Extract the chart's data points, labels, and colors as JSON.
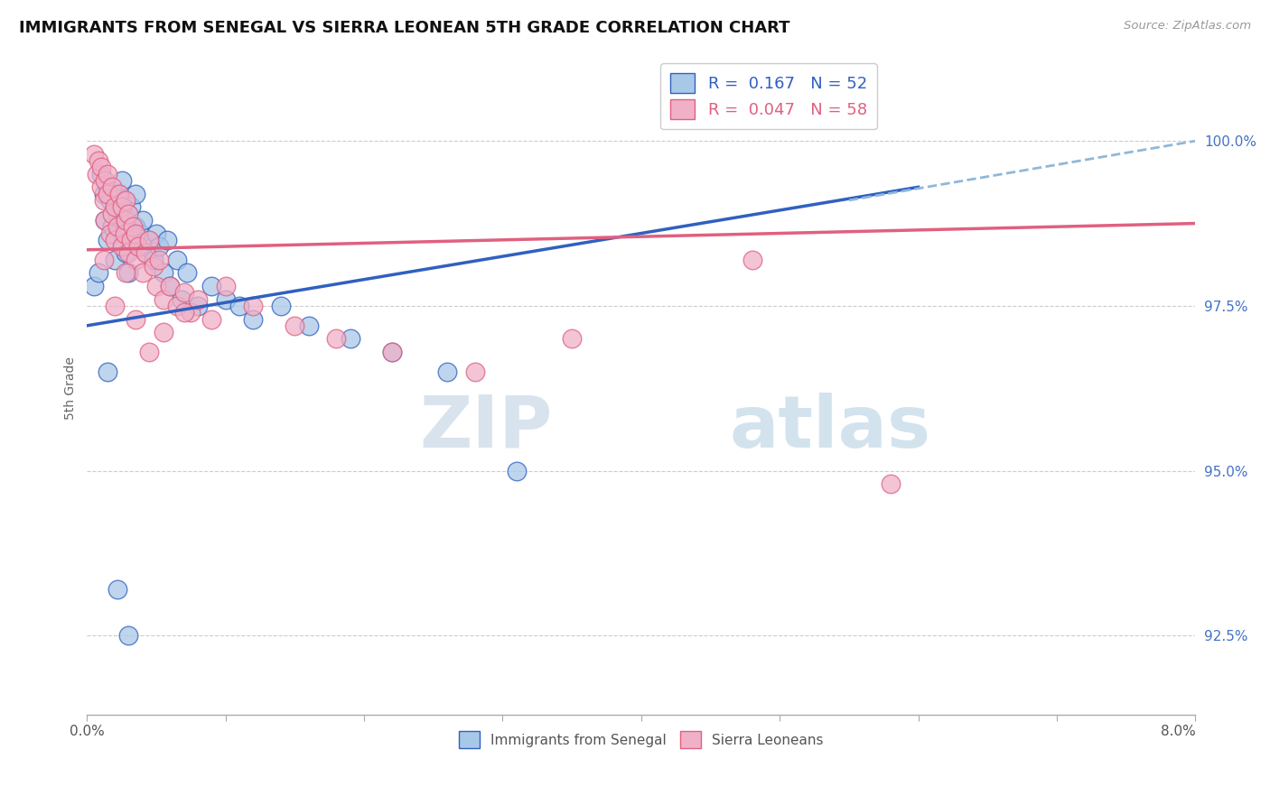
{
  "title": "IMMIGRANTS FROM SENEGAL VS SIERRA LEONEAN 5TH GRADE CORRELATION CHART",
  "source": "Source: ZipAtlas.com",
  "ylabel": "5th Grade",
  "yticks": [
    92.5,
    95.0,
    97.5,
    100.0
  ],
  "ytick_labels": [
    "92.5%",
    "95.0%",
    "97.5%",
    "100.0%"
  ],
  "xmin": 0.0,
  "xmax": 8.0,
  "ymin": 91.3,
  "ymax": 101.2,
  "legend1_R": "0.167",
  "legend1_N": "52",
  "legend2_R": "0.047",
  "legend2_N": "58",
  "color_blue": "#a8c8e8",
  "color_pink": "#f0b0c8",
  "line_blue": "#3060c0",
  "line_pink": "#e06080",
  "line_dash_color": "#90b8d8",
  "watermark_zip": "ZIP",
  "watermark_atlas": "atlas",
  "senegal_x": [
    0.05,
    0.08,
    0.1,
    0.12,
    0.13,
    0.15,
    0.15,
    0.17,
    0.18,
    0.2,
    0.2,
    0.22,
    0.23,
    0.25,
    0.25,
    0.27,
    0.28,
    0.28,
    0.3,
    0.3,
    0.32,
    0.33,
    0.35,
    0.35,
    0.37,
    0.38,
    0.4,
    0.42,
    0.45,
    0.48,
    0.5,
    0.52,
    0.55,
    0.58,
    0.6,
    0.65,
    0.68,
    0.72,
    0.8,
    0.9,
    1.0,
    1.1,
    1.2,
    1.4,
    1.6,
    1.9,
    2.2,
    2.6,
    3.1,
    0.15,
    0.22,
    0.3
  ],
  "senegal_y": [
    97.8,
    98.0,
    99.5,
    99.2,
    98.8,
    99.3,
    98.5,
    99.1,
    98.7,
    99.0,
    98.2,
    98.9,
    99.2,
    98.6,
    99.4,
    98.8,
    99.1,
    98.3,
    98.9,
    98.0,
    99.0,
    98.5,
    98.7,
    99.2,
    98.4,
    98.6,
    98.8,
    98.3,
    98.5,
    98.2,
    98.6,
    98.4,
    98.0,
    98.5,
    97.8,
    98.2,
    97.6,
    98.0,
    97.5,
    97.8,
    97.6,
    97.5,
    97.3,
    97.5,
    97.2,
    97.0,
    96.8,
    96.5,
    95.0,
    96.5,
    93.2,
    92.5
  ],
  "sierra_x": [
    0.05,
    0.07,
    0.08,
    0.1,
    0.1,
    0.12,
    0.13,
    0.13,
    0.15,
    0.15,
    0.17,
    0.18,
    0.18,
    0.2,
    0.2,
    0.22,
    0.23,
    0.25,
    0.25,
    0.27,
    0.28,
    0.28,
    0.3,
    0.3,
    0.32,
    0.33,
    0.35,
    0.35,
    0.37,
    0.4,
    0.42,
    0.45,
    0.48,
    0.5,
    0.52,
    0.55,
    0.6,
    0.65,
    0.7,
    0.75,
    0.8,
    0.9,
    1.0,
    1.2,
    1.5,
    1.8,
    2.2,
    2.8,
    3.5,
    0.12,
    0.2,
    0.28,
    0.35,
    0.45,
    0.55,
    0.7,
    5.8,
    4.8
  ],
  "sierra_y": [
    99.8,
    99.5,
    99.7,
    99.3,
    99.6,
    99.1,
    99.4,
    98.8,
    99.2,
    99.5,
    98.6,
    99.3,
    98.9,
    99.0,
    98.5,
    98.7,
    99.2,
    98.4,
    99.0,
    98.6,
    98.8,
    99.1,
    98.3,
    98.9,
    98.5,
    98.7,
    98.2,
    98.6,
    98.4,
    98.0,
    98.3,
    98.5,
    98.1,
    97.8,
    98.2,
    97.6,
    97.8,
    97.5,
    97.7,
    97.4,
    97.6,
    97.3,
    97.8,
    97.5,
    97.2,
    97.0,
    96.8,
    96.5,
    97.0,
    98.2,
    97.5,
    98.0,
    97.3,
    96.8,
    97.1,
    97.4,
    94.8,
    98.2
  ],
  "blue_line_x0": 0.0,
  "blue_line_y0": 97.2,
  "blue_line_x1": 6.0,
  "blue_line_y1": 99.3,
  "blue_dash_x0": 5.5,
  "blue_dash_y0": 99.1,
  "blue_dash_x1": 8.0,
  "blue_dash_y1": 100.0,
  "pink_line_x0": 0.0,
  "pink_line_y0": 98.35,
  "pink_line_x1": 8.0,
  "pink_line_y1": 98.75
}
